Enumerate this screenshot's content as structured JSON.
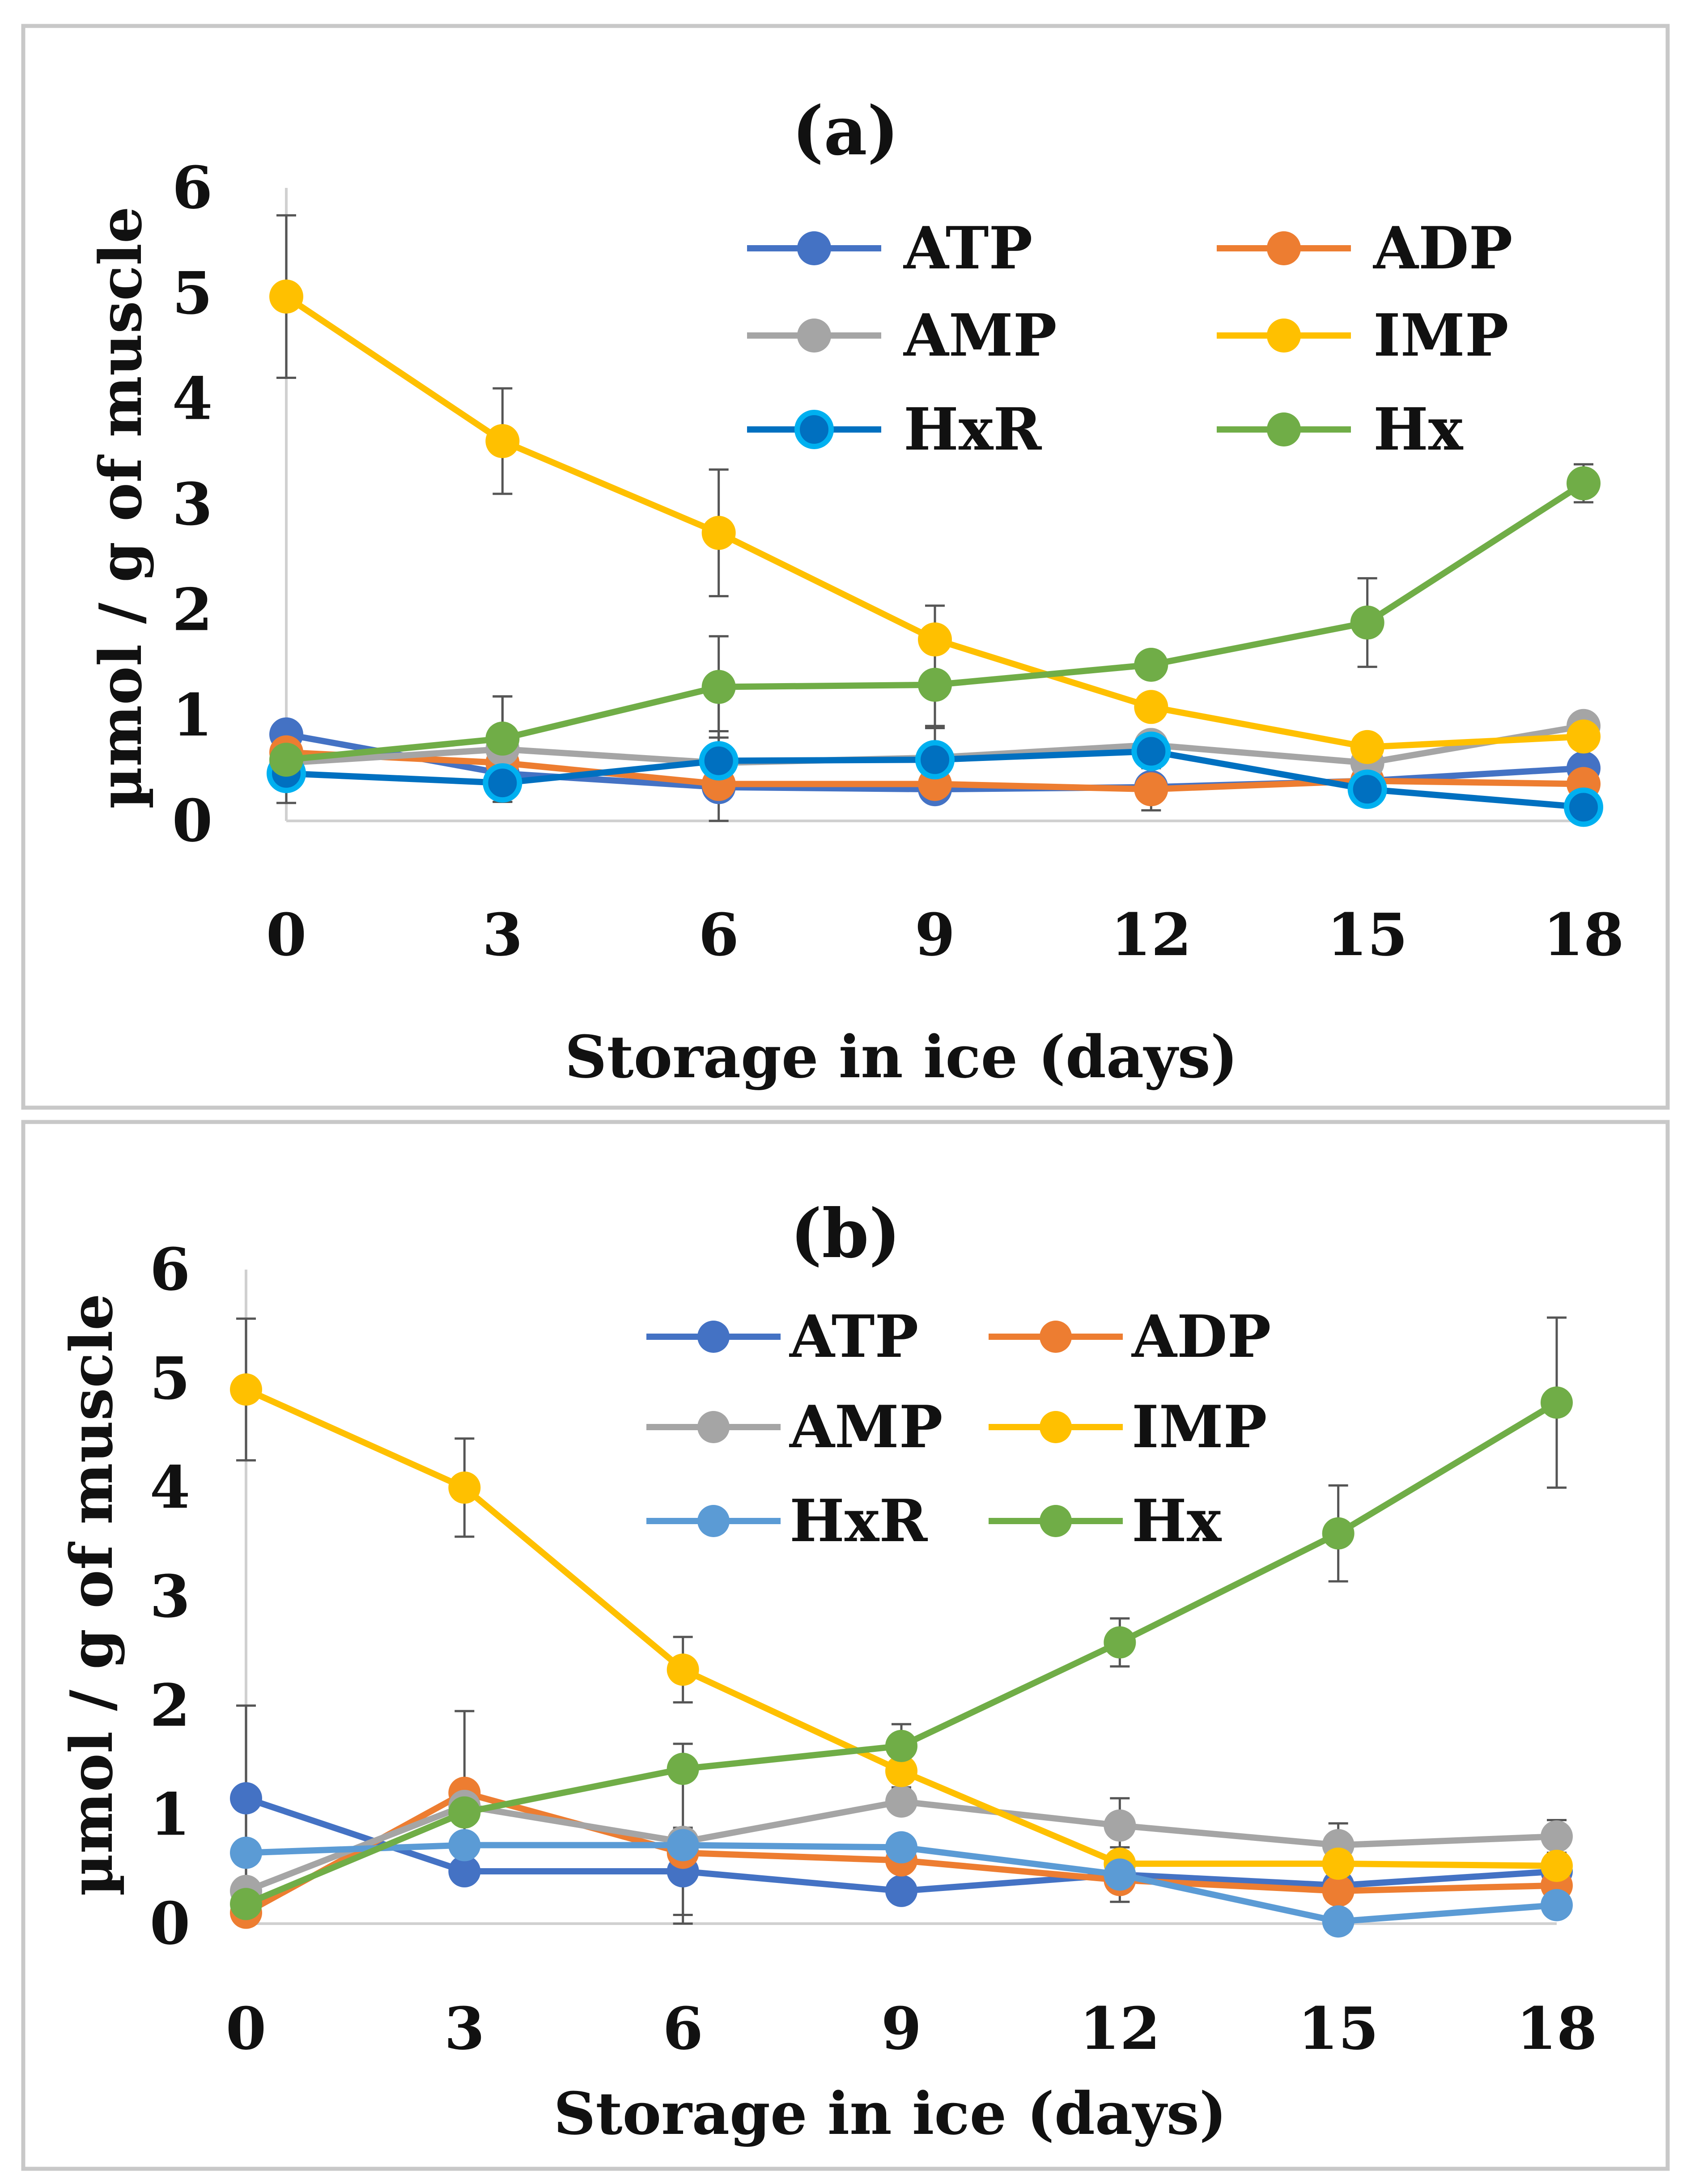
{
  "figure": {
    "panels": [
      {
        "title": "(a)",
        "ylabel": "µmol / g of muscle",
        "xlabel": "Storage in ice (days)"
      },
      {
        "title": "(b)",
        "ylabel": "µmol / g of muscle",
        "xlabel": "Storage in ice (days)"
      }
    ]
  },
  "chart_data": [
    {
      "type": "line",
      "title": "(a)",
      "xlabel": "Storage in ice (days)",
      "ylabel": "µmol / g of muscle",
      "x": [
        0,
        3,
        6,
        9,
        12,
        15,
        18
      ],
      "x_tick_labels": [
        "0",
        "3",
        "6",
        "9",
        "12",
        "15",
        "18"
      ],
      "y_tick_labels": [
        "0",
        "1",
        "2",
        "3",
        "4",
        "5",
        "6"
      ],
      "xlim": [
        0,
        18
      ],
      "ylim": [
        0,
        6
      ],
      "grid": false,
      "legend_position": "top-right, two columns",
      "series": [
        {
          "name": "ATP",
          "color": "#4472C4",
          "values": [
            0.82,
            0.45,
            0.32,
            0.3,
            0.32,
            0.38,
            0.5
          ],
          "errors": [
            0,
            0,
            0,
            0,
            0,
            0,
            0
          ]
        },
        {
          "name": "ADP",
          "color": "#ED7D31",
          "values": [
            0.65,
            0.55,
            0.35,
            0.35,
            0.3,
            0.38,
            0.35
          ],
          "errors": [
            0,
            0,
            0,
            0,
            0.2,
            0,
            0
          ]
        },
        {
          "name": "AMP",
          "color": "#A5A5A5",
          "values": [
            0.55,
            0.68,
            0.55,
            0.6,
            0.72,
            0.55,
            0.9
          ],
          "errors": [
            0,
            0.5,
            0.3,
            0.3,
            0,
            0,
            0
          ]
        },
        {
          "name": "IMP",
          "color": "#FFC000",
          "values": [
            4.97,
            3.6,
            2.73,
            1.72,
            1.08,
            0.7,
            0.8
          ],
          "errors": [
            0.77,
            0.5,
            0.6,
            0.32,
            0,
            0,
            0
          ]
        },
        {
          "name": "HxR",
          "color": "#0070C0",
          "values": [
            0.45,
            0.36,
            0.57,
            0.58,
            0.66,
            0.3,
            0.13
          ],
          "errors": [
            0.28,
            0.18,
            0.7,
            0.3,
            0.13,
            0,
            0
          ]
        },
        {
          "name": "Hx",
          "color": "#70AD47",
          "values": [
            0.58,
            0.78,
            1.27,
            1.29,
            1.48,
            1.88,
            3.2
          ],
          "errors": [
            0,
            0.4,
            0.48,
            0.4,
            0,
            0.42,
            0.18
          ]
        }
      ]
    },
    {
      "type": "line",
      "title": "(b)",
      "xlabel": "Storage in ice (days)",
      "ylabel": "µmol / g of muscle",
      "x": [
        0,
        3,
        6,
        9,
        12,
        15,
        18
      ],
      "x_tick_labels": [
        "0",
        "3",
        "6",
        "9",
        "12",
        "15",
        "18"
      ],
      "y_tick_labels": [
        "0",
        "1",
        "2",
        "3",
        "4",
        "5",
        "6"
      ],
      "xlim": [
        0,
        18
      ],
      "ylim": [
        0,
        6
      ],
      "grid": false,
      "legend_position": "top-center, two columns",
      "series": [
        {
          "name": "ATP",
          "color": "#4472C4",
          "values": [
            1.15,
            0.48,
            0.48,
            0.3,
            0.45,
            0.35,
            0.48
          ],
          "errors": [
            0.85,
            0,
            0.4,
            0,
            0,
            0,
            0
          ]
        },
        {
          "name": "ADP",
          "color": "#ED7D31",
          "values": [
            0.1,
            1.2,
            0.65,
            0.58,
            0.4,
            0.3,
            0.35
          ],
          "errors": [
            0,
            0.75,
            0,
            0,
            0,
            0,
            0
          ]
        },
        {
          "name": "AMP",
          "color": "#A5A5A5",
          "values": [
            0.3,
            1.08,
            0.75,
            1.12,
            0.9,
            0.72,
            0.8
          ],
          "errors": [
            0,
            0,
            0.9,
            0,
            0.25,
            0.2,
            0.15
          ]
        },
        {
          "name": "IMP",
          "color": "#FFC000",
          "values": [
            4.9,
            4.0,
            2.33,
            1.4,
            0.55,
            0.55,
            0.53
          ],
          "errors": [
            0.65,
            0.45,
            0.3,
            0.15,
            0,
            0,
            0
          ]
        },
        {
          "name": "HxR",
          "color": "#5B9BD5",
          "values": [
            0.65,
            0.72,
            0.72,
            0.7,
            0.45,
            0.02,
            0.17
          ],
          "errors": [
            0,
            0,
            0,
            0,
            0.25,
            0,
            0
          ]
        },
        {
          "name": "Hx",
          "color": "#70AD47",
          "values": [
            0.18,
            1.02,
            1.42,
            1.63,
            2.58,
            3.58,
            4.78
          ],
          "errors": [
            0,
            0,
            0,
            0.2,
            0.22,
            0.44,
            0.78
          ]
        }
      ]
    }
  ]
}
